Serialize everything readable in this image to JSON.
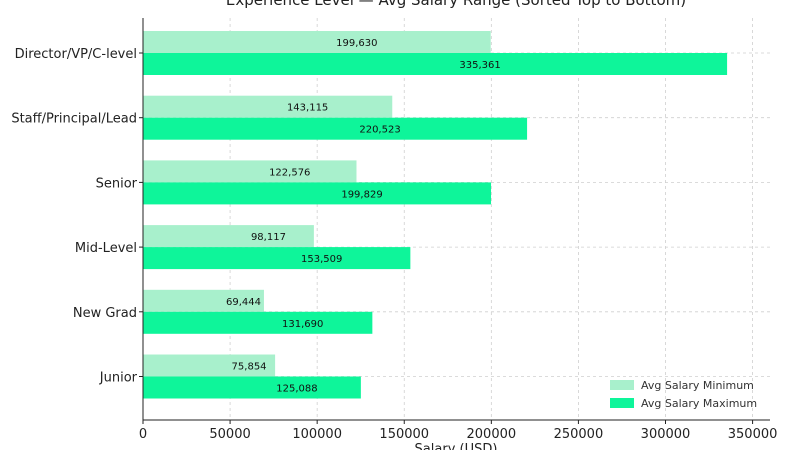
{
  "chart_data": {
    "type": "bar",
    "orientation": "horizontal",
    "title": "Experience Level — Avg Salary Range (Sorted Top to Bottom)",
    "xlabel": "Salary (USD)",
    "ylabel": "",
    "xlim": [
      0,
      360000
    ],
    "xticks": [
      0,
      50000,
      100000,
      150000,
      200000,
      250000,
      300000,
      350000
    ],
    "categories": [
      "Director/VP/C-level",
      "Staff/Principal/Lead",
      "Senior",
      "Mid-Level",
      "New Grad",
      "Junior"
    ],
    "series": [
      {
        "name": "Avg Salary Minimum",
        "color": "#a8f0cc",
        "values": [
          199630,
          143115,
          122576,
          98117,
          69444,
          75854
        ],
        "labels": [
          "199,630",
          "143,115",
          "122,576",
          "98,117",
          "69,444",
          "75,854"
        ]
      },
      {
        "name": "Avg Salary Maximum",
        "color": "#0ef59a",
        "values": [
          335361,
          220523,
          199829,
          153509,
          131690,
          125088
        ],
        "labels": [
          "335,361",
          "220,523",
          "199,829",
          "153,509",
          "131,690",
          "125,088"
        ]
      }
    ],
    "grid": true,
    "legend_position": "lower-right"
  }
}
